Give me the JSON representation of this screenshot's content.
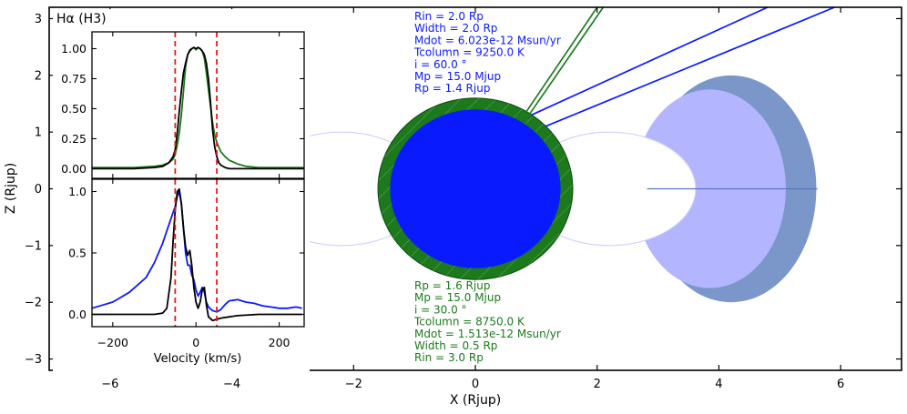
{
  "chart_data": [
    {
      "type": "scatter",
      "panel": "main",
      "xlabel": "X (Rjup)",
      "ylabel": "Z (Rjup)",
      "xlim": [
        -7.0,
        7.0
      ],
      "ylim": [
        -3.2,
        3.2
      ],
      "xticks": [
        -6,
        -4,
        -2,
        0,
        2,
        4,
        6
      ],
      "xtick_labels": [
        "−6",
        "−4",
        "−2",
        "0",
        "2",
        "4",
        "6"
      ],
      "yticks": [
        -3,
        -2,
        -1,
        0,
        1,
        2,
        3
      ],
      "ytick_labels": [
        "−3",
        "−2",
        "−1",
        "0",
        "1",
        "2",
        "3"
      ],
      "colors": {
        "planet_blue": "#0a1aff",
        "planet_green": "#1c7a1c",
        "torus_outer": "#7b96c8",
        "torus_inner": "#b3b6ff",
        "line_blue": "#0a1aff",
        "line_green": "#1c7a1c"
      },
      "shapes": {
        "blue_planet": {
          "cx": 0,
          "cz": 0,
          "r": 1.4
        },
        "green_planet": {
          "cx": 0,
          "cz": 0,
          "r": 1.6
        },
        "torus_outer_right": {
          "cx": 4.2,
          "cz": 0,
          "rx": 1.4,
          "rz": 2.0
        },
        "torus_outer_left": {
          "cx": -4.2,
          "cz": 0,
          "rx": 1.4,
          "rz": 2.0
        },
        "torus_inner_right": {
          "cx": 3.85,
          "cz": 0,
          "rx": 1.25,
          "rz": 1.75
        },
        "torus_inner_left": {
          "cx": -3.85,
          "cz": 0,
          "rx": 1.25,
          "rz": 1.75
        },
        "torus_hole_right": {
          "cx": 2.2,
          "cz": 0,
          "rx": 1.42,
          "rz": 1.0
        },
        "torus_hole_left": {
          "cx": -2.2,
          "cz": 0,
          "rx": 1.42,
          "rz": 1.0
        }
      },
      "lines": {
        "blue_rays": [
          {
            "x": [
              0.92,
              4.8
            ],
            "z": [
              1.3,
              3.2
            ]
          },
          {
            "x": [
              1.15,
              5.9
            ],
            "z": [
              1.1,
              3.2
            ]
          }
        ],
        "green_rays": [
          {
            "x": [
              0.8,
              2.0
            ],
            "z": [
              1.3,
              3.2
            ]
          },
          {
            "x": [
              0.88,
              2.1
            ],
            "z": [
              1.3,
              3.2
            ]
          }
        ],
        "midline": {
          "x": [
            2.82,
            5.62
          ],
          "z": [
            0,
            0
          ]
        }
      },
      "annotations_blue": [
        "Rin = 2.0 Rp",
        "Width = 2.0 Rp",
        "Mdot = 6.023e-12 Msun/yr",
        "Tcolumn = 9250.0 K",
        "i = 60.0 °",
        "Mp = 15.0 Mjup",
        "Rp = 1.4 Rjup"
      ],
      "annotations_green": [
        "Rp = 1.6 Rjup",
        "Mp = 15.0 Mjup",
        "i = 30.0 °",
        "Tcolumn = 8750.0 K",
        "Mdot = 1.513e-12 Msun/yr",
        "Width = 0.5 Rp",
        "Rin = 3.0 Rp"
      ]
    },
    {
      "type": "line",
      "panel": "inset-top",
      "title": "Hα (H3)",
      "xlim": [
        -250,
        260
      ],
      "ylim": [
        -0.08,
        1.14
      ],
      "yticks": [
        0.0,
        0.25,
        0.5,
        0.75,
        1.0
      ],
      "ytick_labels": [
        "0.00",
        "0.25",
        "0.50",
        "0.75",
        "1.00"
      ],
      "vlines": [
        -50,
        50
      ],
      "vline_color": "#e8191c",
      "series": [
        {
          "color": "#1c7a1c",
          "x": [
            -250,
            -200,
            -150,
            -100,
            -80,
            -65,
            -55,
            -50,
            -45,
            -40,
            -35,
            -30,
            -25,
            -20,
            -15,
            -10,
            -5,
            0,
            5,
            10,
            15,
            20,
            25,
            30,
            35,
            40,
            45,
            50,
            55,
            60,
            70,
            80,
            100,
            120,
            150,
            200,
            260
          ],
          "y": [
            0.01,
            0.01,
            0.01,
            0.02,
            0.03,
            0.05,
            0.08,
            0.12,
            0.2,
            0.3,
            0.45,
            0.65,
            0.85,
            0.95,
            0.99,
            1.0,
            1.01,
            0.99,
            1.01,
            1.0,
            0.98,
            0.92,
            0.8,
            0.66,
            0.52,
            0.38,
            0.28,
            0.22,
            0.18,
            0.14,
            0.1,
            0.07,
            0.04,
            0.02,
            0.01,
            0.01,
            0.01
          ]
        },
        {
          "color": "#000000",
          "x": [
            -250,
            -200,
            -150,
            -100,
            -80,
            -65,
            -55,
            -50,
            -45,
            -40,
            -35,
            -30,
            -25,
            -20,
            -15,
            -10,
            -5,
            0,
            5,
            10,
            15,
            20,
            25,
            30,
            35,
            40,
            45,
            50,
            55,
            60,
            70,
            80,
            100,
            120,
            150,
            200,
            260
          ],
          "y": [
            0.0,
            0.0,
            0.0,
            0.01,
            0.02,
            0.05,
            0.1,
            0.16,
            0.3,
            0.48,
            0.65,
            0.8,
            0.88,
            0.95,
            0.98,
            1.0,
            1.01,
            1.0,
            1.01,
            1.0,
            0.98,
            0.95,
            0.88,
            0.75,
            0.55,
            0.32,
            0.18,
            0.1,
            0.05,
            0.03,
            0.01,
            0.0,
            0.0,
            0.0,
            0.0,
            0.0,
            0.0
          ]
        }
      ]
    },
    {
      "type": "line",
      "panel": "inset-bottom",
      "xlabel": "Velocity (km/s)",
      "xlim": [
        -250,
        260
      ],
      "ylim": [
        -0.1,
        1.1
      ],
      "xticks": [
        -200,
        0,
        200
      ],
      "xtick_labels": [
        "−200",
        "0",
        "200"
      ],
      "yticks": [
        0.0,
        0.5,
        1.0
      ],
      "ytick_labels": [
        "0.0",
        "0.5",
        "1.0"
      ],
      "vlines": [
        -50,
        50
      ],
      "vline_color": "#e8191c",
      "series": [
        {
          "color": "#0a1aff",
          "x": [
            -250,
            -220,
            -200,
            -180,
            -160,
            -140,
            -120,
            -100,
            -90,
            -80,
            -70,
            -60,
            -50,
            -45,
            -40,
            -35,
            -30,
            -25,
            -20,
            -15,
            -10,
            -5,
            0,
            5,
            10,
            15,
            20,
            25,
            30,
            40,
            50,
            60,
            70,
            80,
            100,
            120,
            140,
            160,
            180,
            200,
            220,
            240,
            255
          ],
          "y": [
            0.05,
            0.08,
            0.1,
            0.14,
            0.18,
            0.24,
            0.3,
            0.42,
            0.5,
            0.58,
            0.68,
            0.78,
            0.88,
            0.96,
            1.0,
            0.9,
            0.7,
            0.5,
            0.4,
            0.4,
            0.32,
            0.28,
            0.2,
            0.15,
            0.18,
            0.22,
            0.18,
            0.1,
            0.06,
            0.03,
            0.02,
            0.04,
            0.08,
            0.11,
            0.12,
            0.1,
            0.09,
            0.07,
            0.06,
            0.05,
            0.05,
            0.06,
            0.05
          ]
        },
        {
          "color": "#000000",
          "x": [
            -250,
            -200,
            -150,
            -100,
            -80,
            -70,
            -60,
            -55,
            -50,
            -45,
            -40,
            -35,
            -30,
            -25,
            -20,
            -15,
            -10,
            -5,
            0,
            5,
            10,
            15,
            20,
            25,
            30,
            40,
            50,
            60,
            80,
            100,
            150,
            200,
            255
          ],
          "y": [
            0.0,
            0.0,
            0.0,
            0.0,
            0.01,
            0.05,
            0.3,
            0.6,
            0.85,
            1.0,
            1.02,
            0.9,
            0.7,
            0.55,
            0.48,
            0.52,
            0.4,
            0.22,
            0.1,
            0.05,
            0.1,
            0.2,
            0.22,
            0.08,
            -0.02,
            -0.05,
            -0.04,
            -0.03,
            -0.02,
            -0.01,
            0.0,
            0.0,
            0.0
          ]
        }
      ]
    }
  ]
}
